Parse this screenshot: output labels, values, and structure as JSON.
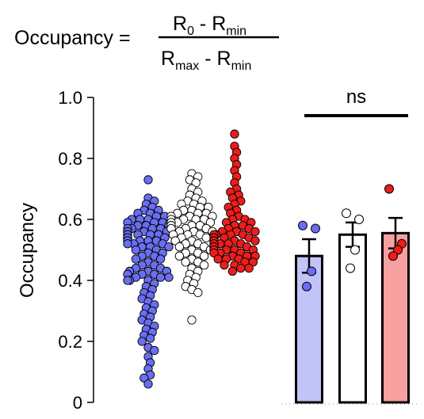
{
  "equation": {
    "lhs": "Occupancy =",
    "numerator": {
      "a": "R",
      "a_sub": "0",
      "op": " - ",
      "b": "R",
      "b_sub": "min"
    },
    "denominator": {
      "a": "R",
      "a_sub": "max",
      "op": " - ",
      "b": "R",
      "b_sub": "min"
    }
  },
  "colors": {
    "blue_fill": "#6a6ef0",
    "blue_bar": "#c2c3f7",
    "white_fill": "#ffffff",
    "red_fill": "#ee1c1c",
    "red_bar": "#f7a0a0",
    "stroke": "#000000"
  },
  "chart_data": {
    "type": "scatter",
    "title": "",
    "xlabel": "",
    "ylabel": "Occupancy",
    "ylim": [
      0,
      1.0
    ],
    "yticks": [
      {
        "value": 0,
        "label": "0"
      },
      {
        "value": 0.2,
        "label": "0.2"
      },
      {
        "value": 0.4,
        "label": "0.4"
      },
      {
        "value": 0.6,
        "label": "0.6"
      },
      {
        "value": 0.8,
        "label": "0.8"
      },
      {
        "value": 1.0,
        "label": "1.0"
      }
    ],
    "strip_groups": [
      {
        "color": "blue",
        "values": [
          0.73,
          0.67,
          0.66,
          0.65,
          0.64,
          0.63,
          0.63,
          0.62,
          0.62,
          0.61,
          0.61,
          0.6,
          0.6,
          0.6,
          0.59,
          0.59,
          0.59,
          0.58,
          0.58,
          0.58,
          0.57,
          0.57,
          0.57,
          0.57,
          0.56,
          0.56,
          0.56,
          0.56,
          0.55,
          0.55,
          0.55,
          0.55,
          0.55,
          0.54,
          0.54,
          0.54,
          0.54,
          0.53,
          0.53,
          0.53,
          0.53,
          0.52,
          0.52,
          0.52,
          0.51,
          0.51,
          0.51,
          0.5,
          0.5,
          0.49,
          0.49,
          0.48,
          0.48,
          0.47,
          0.47,
          0.46,
          0.45,
          0.45,
          0.44,
          0.44,
          0.43,
          0.43,
          0.43,
          0.42,
          0.42,
          0.42,
          0.41,
          0.41,
          0.41,
          0.4,
          0.4,
          0.4,
          0.39,
          0.38,
          0.37,
          0.36,
          0.35,
          0.34,
          0.33,
          0.32,
          0.31,
          0.3,
          0.29,
          0.28,
          0.27,
          0.26,
          0.25,
          0.24,
          0.23,
          0.22,
          0.21,
          0.2,
          0.18,
          0.17,
          0.15,
          0.13,
          0.11,
          0.09,
          0.08,
          0.06
        ]
      },
      {
        "color": "white",
        "values": [
          0.75,
          0.74,
          0.73,
          0.72,
          0.7,
          0.69,
          0.68,
          0.67,
          0.66,
          0.66,
          0.65,
          0.65,
          0.64,
          0.64,
          0.63,
          0.63,
          0.62,
          0.62,
          0.62,
          0.61,
          0.61,
          0.61,
          0.6,
          0.6,
          0.6,
          0.6,
          0.59,
          0.59,
          0.59,
          0.58,
          0.58,
          0.58,
          0.57,
          0.57,
          0.57,
          0.56,
          0.56,
          0.56,
          0.55,
          0.55,
          0.55,
          0.54,
          0.54,
          0.53,
          0.53,
          0.52,
          0.52,
          0.51,
          0.51,
          0.5,
          0.5,
          0.49,
          0.49,
          0.48,
          0.48,
          0.47,
          0.46,
          0.46,
          0.45,
          0.44,
          0.43,
          0.42,
          0.41,
          0.4,
          0.39,
          0.38,
          0.37,
          0.36,
          0.27
        ]
      },
      {
        "color": "red",
        "values": [
          0.88,
          0.84,
          0.82,
          0.8,
          0.78,
          0.76,
          0.74,
          0.72,
          0.7,
          0.69,
          0.68,
          0.67,
          0.66,
          0.65,
          0.64,
          0.63,
          0.62,
          0.61,
          0.6,
          0.6,
          0.59,
          0.59,
          0.58,
          0.58,
          0.57,
          0.57,
          0.56,
          0.56,
          0.56,
          0.55,
          0.55,
          0.55,
          0.55,
          0.54,
          0.54,
          0.54,
          0.54,
          0.53,
          0.53,
          0.53,
          0.53,
          0.52,
          0.52,
          0.52,
          0.52,
          0.51,
          0.51,
          0.51,
          0.51,
          0.5,
          0.5,
          0.5,
          0.5,
          0.49,
          0.49,
          0.49,
          0.48,
          0.48,
          0.48,
          0.47,
          0.47,
          0.47,
          0.46,
          0.46,
          0.45,
          0.45,
          0.44,
          0.44,
          0.43
        ]
      }
    ],
    "bar_groups": [
      {
        "color": "blue",
        "mean": 0.48,
        "sem": 0.055,
        "points": [
          0.58,
          0.57,
          0.43,
          0.38
        ]
      },
      {
        "color": "white",
        "mean": 0.55,
        "sem": 0.04,
        "points": [
          0.62,
          0.6,
          0.5,
          0.44
        ]
      },
      {
        "color": "red",
        "mean": 0.555,
        "sem": 0.05,
        "points": [
          0.7,
          0.52,
          0.5,
          0.48
        ]
      }
    ],
    "significance": {
      "label": "ns",
      "from_bar": 0,
      "to_bar": 2
    }
  }
}
